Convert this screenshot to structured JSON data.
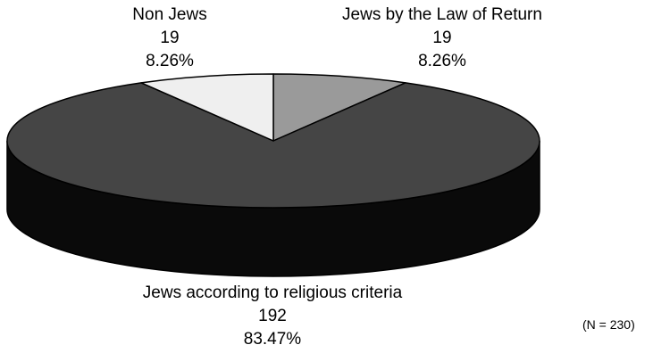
{
  "chart_data": {
    "type": "pie",
    "style": "3d",
    "total_label": "(N = 230)",
    "slices": [
      {
        "label": "Jews by the Law of Return",
        "value": 19,
        "percent": "8.26%",
        "color": "#9a9a9a",
        "side_color": "#5c5c5c"
      },
      {
        "label": "Jews according to religious criteria",
        "value": 192,
        "percent": "83.47%",
        "color": "#454545",
        "side_color": "#0a0a0a"
      },
      {
        "label": "Non Jews",
        "value": 19,
        "percent": "8.26%",
        "color": "#efefef",
        "side_color": "#bdbdbd"
      }
    ],
    "outline_color": "#000000"
  }
}
